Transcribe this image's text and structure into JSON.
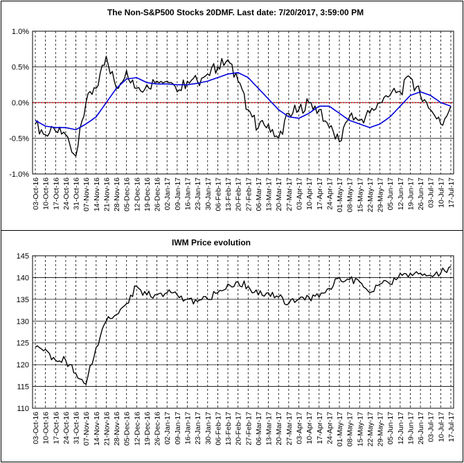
{
  "chart_data": [
    {
      "type": "line",
      "title": "The Non-S&P500 Stocks 20DMF. Last date: 7/20/2017, 3:59:00 PM",
      "ylim": [
        -1.0,
        1.0
      ],
      "ytick_labels": [
        "1.0%",
        "0.5%",
        "0.0%",
        "-0.5%",
        "-1.0%"
      ],
      "ytick_values": [
        1.0,
        0.5,
        0.0,
        -0.5,
        -1.0
      ],
      "x_tick_labels": [
        "03-Oct-16",
        "10-Oct-16",
        "17-Oct-16",
        "24-Oct-16",
        "31-Oct-16",
        "07-Nov-16",
        "14-Nov-16",
        "21-Nov-16",
        "28-Nov-16",
        "05-Dec-16",
        "12-Dec-16",
        "19-Dec-16",
        "26-Dec-16",
        "02-Jan-17",
        "09-Jan-17",
        "16-Jan-17",
        "23-Jan-17",
        "30-Jan-17",
        "06-Feb-17",
        "13-Feb-17",
        "20-Feb-17",
        "27-Feb-17",
        "06-Mar-17",
        "13-Mar-17",
        "20-Mar-17",
        "27-Mar-17",
        "03-Apr-17",
        "10-Apr-17",
        "17-Apr-17",
        "24-Apr-17",
        "01-May-17",
        "08-May-17",
        "15-May-17",
        "22-May-17",
        "29-May-17",
        "05-Jun-17",
        "12-Jun-17",
        "19-Jun-17",
        "26-Jun-17",
        "03-Jul-17",
        "10-Jul-17",
        "17-Jul-17"
      ],
      "grid": true,
      "reference_line": {
        "y": 0.0,
        "color": "#e00000"
      },
      "series": [
        {
          "color": "#000000",
          "week_values": [
            -0.3,
            -0.45,
            -0.4,
            -0.45,
            -0.75,
            0.0,
            0.2,
            0.65,
            0.2,
            0.45,
            0.2,
            0.25,
            0.3,
            0.3,
            0.15,
            0.3,
            0.3,
            0.4,
            0.5,
            0.6,
            0.3,
            -0.1,
            -0.35,
            -0.3,
            -0.5,
            -0.15,
            -0.1,
            0.0,
            -0.1,
            -0.35,
            -0.55,
            -0.2,
            -0.25,
            -0.15,
            0.0,
            0.1,
            0.15,
            0.35,
            0.1,
            -0.1,
            -0.3,
            -0.05
          ]
        },
        {
          "color": "#0000dd",
          "week_values": [
            -0.25,
            -0.33,
            -0.35,
            -0.35,
            -0.38,
            -0.3,
            -0.2,
            0.0,
            0.2,
            0.33,
            0.35,
            0.28,
            0.26,
            0.26,
            0.25,
            0.25,
            0.27,
            0.3,
            0.35,
            0.4,
            0.42,
            0.35,
            0.2,
            0.05,
            -0.1,
            -0.2,
            -0.22,
            -0.15,
            -0.05,
            -0.05,
            -0.15,
            -0.25,
            -0.3,
            -0.35,
            -0.3,
            -0.2,
            -0.05,
            0.1,
            0.15,
            0.1,
            0.0,
            -0.05
          ]
        }
      ]
    },
    {
      "type": "line",
      "title": "IWM Price evolution",
      "ylim": [
        110,
        145
      ],
      "ytick_labels": [
        "145",
        "140",
        "135",
        "130",
        "125",
        "120",
        "115",
        "110"
      ],
      "ytick_values": [
        145,
        140,
        135,
        130,
        125,
        120,
        115,
        110
      ],
      "x_tick_labels": [
        "03-Oct-16",
        "10-Oct-16",
        "17-Oct-16",
        "24-Oct-16",
        "31-Oct-16",
        "07-Nov-16",
        "14-Nov-16",
        "21-Nov-16",
        "28-Nov-16",
        "05-Dec-16",
        "12-Dec-16",
        "19-Dec-16",
        "26-Dec-16",
        "02-Jan-17",
        "09-Jan-17",
        "16-Jan-17",
        "23-Jan-17",
        "30-Jan-17",
        "06-Feb-17",
        "13-Feb-17",
        "20-Feb-17",
        "27-Feb-17",
        "06-Mar-17",
        "13-Mar-17",
        "20-Mar-17",
        "27-Mar-17",
        "03-Apr-17",
        "10-Apr-17",
        "17-Apr-17",
        "24-Apr-17",
        "01-May-17",
        "08-May-17",
        "15-May-17",
        "22-May-17",
        "29-May-17",
        "05-Jun-17",
        "12-Jun-17",
        "19-Jun-17",
        "26-Jun-17",
        "03-Jul-17",
        "10-Jul-17",
        "17-Jul-17"
      ],
      "grid": true,
      "series": [
        {
          "color": "#000000",
          "week_values": [
            124,
            123.5,
            121,
            121,
            118,
            115.5,
            124,
            130,
            131.5,
            134,
            138,
            136,
            136,
            136.5,
            136,
            135,
            134.5,
            135,
            136.5,
            138.5,
            139,
            138,
            136,
            136.5,
            135.5,
            134,
            135,
            135.5,
            135.5,
            137.5,
            140,
            139.5,
            139,
            136.5,
            138.5,
            138.5,
            141,
            141,
            141,
            140.5,
            141,
            142.5
          ]
        }
      ]
    }
  ]
}
